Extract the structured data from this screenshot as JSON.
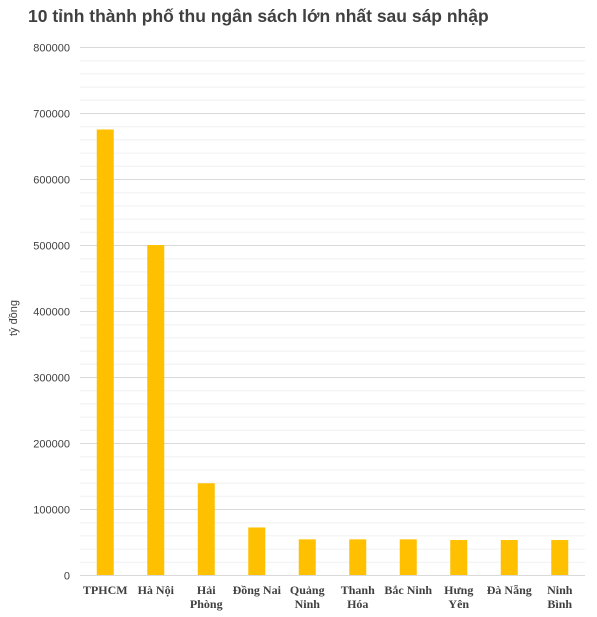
{
  "chart_data": {
    "type": "bar",
    "title": "10 tỉnh thành phố thu ngân sách lớn nhất sau sáp nhập",
    "xlabel": "",
    "ylabel": "tỷ đồng",
    "ylim": [
      0,
      800000
    ],
    "yticks": [
      0,
      100000,
      200000,
      300000,
      400000,
      500000,
      600000,
      700000,
      800000
    ],
    "grid": true,
    "legend": "none",
    "bar_color": "#FFC000",
    "grid_color": "#D9D9D9",
    "categories": [
      "TPHCM",
      "Hà Nội",
      "Hải Phòng",
      "Đồng Nai",
      "Quảng Ninh",
      "Thanh Hóa",
      "Bắc Ninh",
      "Hưng Yên",
      "Đà Nẵng",
      "Ninh Bình"
    ],
    "category_lines": [
      [
        "TPHCM"
      ],
      [
        "Hà Nội"
      ],
      [
        "Hải",
        "Phòng"
      ],
      [
        "Đồng Nai"
      ],
      [
        "Quảng",
        "Ninh"
      ],
      [
        "Thanh",
        "Hóa"
      ],
      [
        "Bắc Ninh"
      ],
      [
        "Hưng",
        "Yên"
      ],
      [
        "Đà Nẵng"
      ],
      [
        "Ninh",
        "Bình"
      ]
    ],
    "values": [
      675000,
      500000,
      139000,
      72000,
      54000,
      54000,
      54000,
      53000,
      53000,
      53000
    ]
  }
}
